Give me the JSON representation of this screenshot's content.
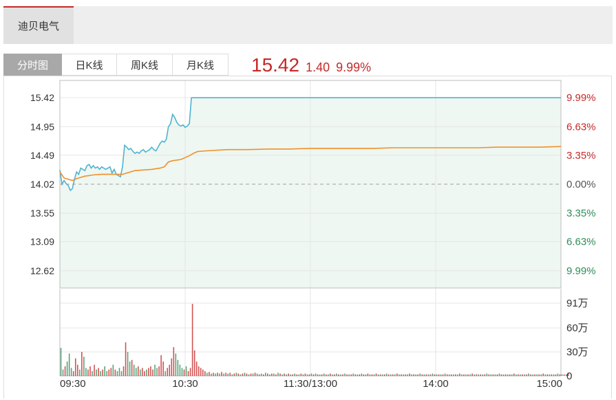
{
  "stock": {
    "name": "迪贝电气"
  },
  "tabs": [
    {
      "label": "分时图",
      "active": true
    },
    {
      "label": "日K线",
      "active": false
    },
    {
      "label": "周K线",
      "active": false
    },
    {
      "label": "月K线",
      "active": false
    }
  ],
  "quote": {
    "price": "15.42",
    "change": "1.40",
    "change_pct": "9.99%"
  },
  "colors": {
    "up": "#c62828",
    "down": "#2e8b57",
    "price_line": "#4fb3d0",
    "avg_line": "#f0902a",
    "fill": "#eef7f1"
  },
  "chart_data": {
    "type": "line",
    "title": "",
    "prev_close": 14.02,
    "ylim": [
      12.34,
      15.7
    ],
    "y_ticks_left": [
      "15.42",
      "14.95",
      "14.49",
      "14.02",
      "13.55",
      "13.09",
      "12.62"
    ],
    "y_ticks_right": [
      "9.99%",
      "6.63%",
      "3.35%",
      "0.00%",
      "3.35%",
      "6.63%",
      "9.99%"
    ],
    "x_ticks": [
      "09:30",
      "10:30",
      "11:30/13:00",
      "14:00",
      "15:00"
    ],
    "volume_ticks": [
      "91万",
      "60万",
      "30万",
      "0"
    ],
    "volume_max": 91,
    "total_minutes": 240,
    "series": [
      {
        "key": "price",
        "x": [
          0,
          1,
          2,
          3,
          4,
          5,
          6,
          7,
          8,
          9,
          10,
          11,
          12,
          13,
          14,
          15,
          16,
          17,
          18,
          19,
          20,
          21,
          22,
          23,
          24,
          25,
          26,
          27,
          28,
          29,
          30,
          31,
          32,
          33,
          34,
          35,
          36,
          37,
          38,
          39,
          40,
          41,
          42,
          43,
          44,
          45,
          46,
          47,
          48,
          49,
          50,
          51,
          52,
          53,
          54,
          55,
          56,
          57,
          58,
          59,
          60,
          61,
          62,
          63,
          64,
          65,
          66,
          67,
          240
        ],
        "y": [
          14.25,
          14.02,
          14.08,
          14.03,
          14.0,
          13.92,
          13.95,
          14.1,
          14.22,
          14.18,
          14.28,
          14.26,
          14.24,
          14.32,
          14.34,
          14.28,
          14.32,
          14.28,
          14.3,
          14.26,
          14.3,
          14.28,
          14.26,
          14.28,
          14.3,
          14.2,
          14.26,
          14.18,
          14.16,
          14.14,
          14.3,
          14.65,
          14.62,
          14.58,
          14.6,
          14.55,
          14.52,
          14.54,
          14.52,
          14.56,
          14.58,
          14.54,
          14.56,
          14.58,
          14.62,
          14.58,
          14.56,
          14.62,
          14.68,
          14.72,
          14.7,
          14.75,
          14.95,
          15.0,
          15.15,
          15.1,
          15.02,
          14.98,
          14.96,
          14.98,
          14.94,
          14.96,
          15.0,
          15.42,
          15.42,
          15.42,
          15.42,
          15.42,
          15.42
        ]
      },
      {
        "key": "avg",
        "x": [
          0,
          2,
          4,
          6,
          8,
          10,
          12,
          14,
          16,
          20,
          24,
          28,
          30,
          32,
          34,
          36,
          40,
          44,
          48,
          50,
          52,
          54,
          56,
          58,
          62,
          64,
          66,
          70,
          80,
          90,
          100,
          110,
          120,
          130,
          140,
          150,
          160,
          170,
          180,
          190,
          200,
          210,
          220,
          230,
          240
        ],
        "y": [
          14.22,
          14.12,
          14.1,
          14.08,
          14.11,
          14.13,
          14.15,
          14.16,
          14.17,
          14.18,
          14.18,
          14.18,
          14.18,
          14.2,
          14.22,
          14.24,
          14.25,
          14.26,
          14.28,
          14.3,
          14.38,
          14.4,
          14.41,
          14.42,
          14.48,
          14.52,
          14.55,
          14.56,
          14.58,
          14.58,
          14.59,
          14.59,
          14.6,
          14.6,
          14.6,
          14.6,
          14.61,
          14.61,
          14.61,
          14.61,
          14.61,
          14.62,
          14.62,
          14.62,
          14.63
        ]
      }
    ],
    "volume": [
      35,
      8,
      12,
      18,
      28,
      10,
      6,
      22,
      14,
      8,
      30,
      24,
      10,
      8,
      12,
      6,
      14,
      8,
      10,
      6,
      8,
      12,
      6,
      8,
      10,
      14,
      8,
      6,
      10,
      6,
      12,
      42,
      30,
      18,
      20,
      14,
      10,
      12,
      8,
      10,
      6,
      8,
      10,
      12,
      8,
      14,
      10,
      12,
      26,
      18,
      6,
      10,
      14,
      22,
      36,
      28,
      20,
      14,
      10,
      8,
      12,
      6,
      10,
      90,
      32,
      18,
      12,
      10,
      8,
      6,
      4,
      5,
      3,
      4,
      3,
      4,
      3,
      5,
      3,
      4,
      3,
      4,
      2,
      3,
      4,
      3,
      2,
      3,
      4,
      3,
      2,
      3,
      3,
      4,
      3,
      2,
      3,
      2,
      4,
      3,
      2,
      3,
      3,
      2,
      4,
      3,
      2,
      3,
      2,
      3,
      2,
      2,
      3,
      2,
      2,
      3,
      2,
      3,
      2,
      2,
      3,
      2,
      3,
      2,
      2,
      2,
      3,
      2,
      2,
      3,
      2,
      2,
      3,
      2,
      2,
      2,
      3,
      2,
      2,
      2,
      3,
      2,
      2,
      2,
      3,
      2,
      2,
      3,
      2,
      2,
      2,
      3,
      2,
      2,
      2,
      2,
      3,
      2,
      2,
      2,
      2,
      3,
      2,
      2,
      2,
      2,
      2,
      3,
      2,
      2,
      2,
      2,
      3,
      2,
      2,
      2,
      2,
      2,
      3,
      2,
      2,
      2,
      2,
      2,
      3,
      2,
      2,
      2,
      2,
      2,
      2,
      3,
      2,
      2,
      2,
      2,
      2,
      3,
      2,
      2,
      2,
      2,
      2,
      2,
      3,
      2,
      2,
      2,
      2,
      2,
      3,
      2,
      2,
      2,
      2,
      2,
      2,
      3,
      2,
      2,
      2,
      2,
      2,
      2,
      3,
      2,
      2,
      2,
      2,
      2,
      2,
      3,
      2,
      2,
      2,
      2,
      2,
      2,
      3,
      2,
      2,
      2,
      2,
      4
    ]
  }
}
